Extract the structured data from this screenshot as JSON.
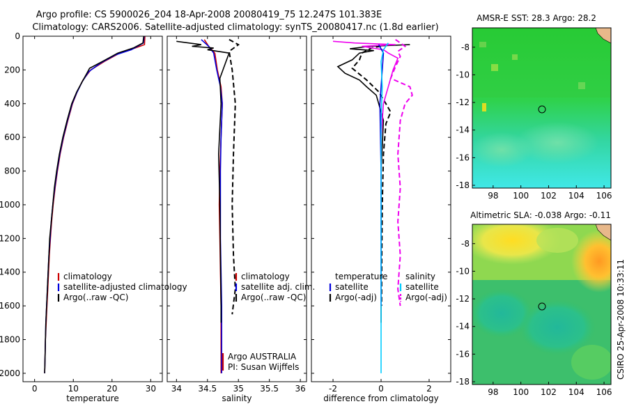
{
  "title_line1": "Argo profile: CS 5900026_204 18-Apr-2008 20080419_75 12.247S 101.383E",
  "title_line2": "Climatology: CARS2006. Satellite-adjusted climatology: synTS_20080417.nc (1.8d earlier)",
  "side_note": "CSIRO 25-Apr-2008 10:33:11",
  "chart_data": [
    {
      "type": "line",
      "id": "temperature",
      "xlabel": "temperature",
      "ylabel": "",
      "xlim": [
        -3,
        33
      ],
      "ylim": [
        0,
        2050
      ],
      "y_inverted": true,
      "xticks": [
        0,
        10,
        20,
        30
      ],
      "yticks": [
        0,
        200,
        400,
        600,
        800,
        1000,
        1200,
        1400,
        1600,
        1800,
        2000
      ],
      "legend": [
        "climatology",
        "satellite-adjusted climatology",
        "Argo(..raw -QC)"
      ],
      "series": [
        {
          "name": "climatology",
          "color": "#cc0000",
          "style": "solid",
          "points": [
            [
              28.5,
              0
            ],
            [
              28.4,
              50
            ],
            [
              26,
              70
            ],
            [
              22,
              100
            ],
            [
              18,
              150
            ],
            [
              14.5,
              200
            ],
            [
              12.5,
              260
            ],
            [
              11,
              330
            ],
            [
              9.8,
              400
            ],
            [
              8.6,
              500
            ],
            [
              7.5,
              600
            ],
            [
              6.6,
              700
            ],
            [
              5.9,
              800
            ],
            [
              5.3,
              900
            ],
            [
              4.8,
              1000
            ],
            [
              4.4,
              1100
            ],
            [
              4.1,
              1200
            ],
            [
              3.8,
              1300
            ],
            [
              3.6,
              1400
            ],
            [
              3.4,
              1500
            ],
            [
              3.2,
              1600
            ],
            [
              3.0,
              1700
            ],
            [
              2.8,
              1800
            ],
            [
              2.7,
              1900
            ],
            [
              2.6,
              2000
            ]
          ]
        },
        {
          "name": "satellite-adjusted climatology",
          "color": "#0000dd",
          "style": "solid",
          "points": [
            [
              28.3,
              0
            ],
            [
              28.1,
              40
            ],
            [
              25,
              80
            ],
            [
              21,
              110
            ],
            [
              17,
              160
            ],
            [
              14,
              210
            ],
            [
              12.3,
              270
            ],
            [
              10.8,
              340
            ],
            [
              9.7,
              400
            ],
            [
              8.5,
              500
            ],
            [
              7.4,
              600
            ],
            [
              6.5,
              700
            ],
            [
              5.8,
              800
            ],
            [
              5.2,
              900
            ],
            [
              4.7,
              1000
            ],
            [
              4.3,
              1100
            ],
            [
              4.0,
              1200
            ],
            [
              3.7,
              1300
            ],
            [
              3.5,
              1400
            ],
            [
              3.3,
              1500
            ],
            [
              3.1,
              1600
            ],
            [
              2.9,
              1700
            ],
            [
              2.8,
              1800
            ],
            [
              2.7,
              1900
            ],
            [
              2.6,
              2000
            ]
          ]
        },
        {
          "name": "Argo(..raw -QC)",
          "color": "#000000",
          "style": "solid",
          "points": [
            [
              28.2,
              0
            ],
            [
              28.0,
              40
            ],
            [
              25.5,
              70
            ],
            [
              21.5,
              100
            ],
            [
              17.5,
              150
            ],
            [
              14.2,
              190
            ],
            [
              13.5,
              220
            ],
            [
              12.3,
              270
            ],
            [
              10.9,
              330
            ],
            [
              9.6,
              400
            ],
            [
              8.4,
              500
            ],
            [
              7.3,
              600
            ],
            [
              6.4,
              700
            ],
            [
              5.7,
              800
            ],
            [
              5.1,
              900
            ],
            [
              4.7,
              1000
            ],
            [
              4.3,
              1100
            ],
            [
              3.9,
              1200
            ],
            [
              3.7,
              1300
            ],
            [
              3.5,
              1400
            ],
            [
              3.3,
              1500
            ],
            [
              3.1,
              1600
            ],
            [
              2.9,
              1700
            ],
            [
              2.8,
              1800
            ],
            [
              2.7,
              1900
            ],
            [
              2.6,
              2000
            ]
          ]
        }
      ]
    },
    {
      "type": "line",
      "id": "salinity",
      "xlabel": "salinity",
      "xlim": [
        33.85,
        36.1
      ],
      "ylim": [
        0,
        2050
      ],
      "y_inverted": true,
      "xticks": [
        34,
        34.5,
        35,
        35.5,
        36
      ],
      "legend": [
        "climatology",
        "satellite adj. clim.",
        "Argo(..raw -QC)"
      ],
      "annotation": [
        "Argo AUSTRALIA",
        "PI: Susan Wijffels"
      ],
      "series": [
        {
          "name": "climatology",
          "color": "#cc0000",
          "style": "solid",
          "points": [
            [
              34.45,
              20
            ],
            [
              34.52,
              60
            ],
            [
              34.62,
              100
            ],
            [
              34.66,
              200
            ],
            [
              34.72,
              300
            ],
            [
              34.74,
              400
            ],
            [
              34.72,
              600
            ],
            [
              34.7,
              800
            ],
            [
              34.69,
              1000
            ],
            [
              34.7,
              1200
            ],
            [
              34.71,
              1400
            ],
            [
              34.72,
              1600
            ],
            [
              34.72,
              1800
            ],
            [
              34.72,
              2000
            ]
          ]
        },
        {
          "name": "satellite adj. clim.",
          "color": "#0000dd",
          "style": "solid",
          "points": [
            [
              34.4,
              20
            ],
            [
              34.52,
              60
            ],
            [
              34.6,
              100
            ],
            [
              34.65,
              200
            ],
            [
              34.71,
              300
            ],
            [
              34.74,
              400
            ],
            [
              34.72,
              600
            ],
            [
              34.71,
              800
            ],
            [
              34.71,
              1000
            ],
            [
              34.71,
              1200
            ],
            [
              34.72,
              1400
            ],
            [
              34.73,
              1600
            ],
            [
              34.73,
              1800
            ],
            [
              34.73,
              2000
            ]
          ]
        },
        {
          "name": "Argo(..raw -QC)",
          "color": "#000000",
          "style": "solid",
          "points": [
            [
              34.0,
              30
            ],
            [
              34.4,
              50
            ],
            [
              34.25,
              60
            ],
            [
              34.6,
              70
            ],
            [
              34.5,
              80
            ],
            [
              34.85,
              100
            ],
            [
              34.8,
              150
            ],
            [
              34.7,
              250
            ],
            [
              34.72,
              400
            ],
            [
              34.68,
              700
            ],
            [
              34.7,
              1000
            ],
            [
              34.71,
              1300
            ],
            [
              34.72,
              1600
            ],
            [
              34.72,
              1700
            ]
          ]
        },
        {
          "name": "Argo adjusted",
          "color": "#000000",
          "style": "dashed",
          "points": [
            [
              34.85,
              20
            ],
            [
              35.0,
              50
            ],
            [
              34.85,
              90
            ],
            [
              34.9,
              200
            ],
            [
              34.95,
              400
            ],
            [
              34.92,
              700
            ],
            [
              34.9,
              1000
            ],
            [
              34.92,
              1300
            ],
            [
              34.95,
              1500
            ],
            [
              34.9,
              1650
            ]
          ]
        }
      ]
    },
    {
      "type": "line",
      "id": "difference",
      "xlabel": "difference from climatology",
      "xlim": [
        -2.9,
        2.9
      ],
      "ylim": [
        0,
        2050
      ],
      "y_inverted": true,
      "xticks": [
        -2,
        0,
        2
      ],
      "legend_left": [
        "temperature",
        "satellite",
        "Argo(-adj)"
      ],
      "legend_right": [
        "salinity",
        "satellite",
        "Argo(-adj)"
      ],
      "series": [
        {
          "name": "temperature Argo",
          "color": "#000000",
          "style": "solid",
          "points": [
            [
              1.2,
              50
            ],
            [
              -0.5,
              60
            ],
            [
              -1.3,
              75
            ],
            [
              -0.3,
              85
            ],
            [
              -0.9,
              100
            ],
            [
              -1.2,
              140
            ],
            [
              -1.8,
              180
            ],
            [
              -1.5,
              220
            ],
            [
              -0.9,
              260
            ],
            [
              -0.6,
              300
            ],
            [
              -0.2,
              350
            ],
            [
              -0.1,
              400
            ],
            [
              0.1,
              500
            ],
            [
              0,
              800
            ],
            [
              0,
              1200
            ],
            [
              0,
              1700
            ]
          ]
        },
        {
          "name": "temperature Argo adj",
          "color": "#000000",
          "style": "dashed",
          "points": [
            [
              0.3,
              50
            ],
            [
              -0.4,
              70
            ],
            [
              -0.8,
              100
            ],
            [
              -0.9,
              140
            ],
            [
              -1.2,
              190
            ],
            [
              -0.6,
              260
            ],
            [
              -0.1,
              330
            ],
            [
              0.2,
              400
            ],
            [
              0.4,
              450
            ],
            [
              0.2,
              520
            ],
            [
              0.1,
              700
            ],
            [
              0.05,
              1000
            ],
            [
              0.03,
              1300
            ],
            [
              0.02,
              1600
            ]
          ]
        },
        {
          "name": "salinity Argo",
          "color": "#ee00ee",
          "style": "solid",
          "points": [
            [
              -2.0,
              30
            ],
            [
              -1.1,
              40
            ],
            [
              0.6,
              50
            ],
            [
              -0.8,
              60
            ],
            [
              0.1,
              80
            ],
            [
              0.3,
              100
            ],
            [
              0.7,
              130
            ],
            [
              0.5,
              200
            ],
            [
              0.3,
              300
            ],
            [
              0.1,
              400
            ],
            [
              0,
              600
            ],
            [
              0,
              900
            ],
            [
              0,
              1200
            ],
            [
              0,
              1600
            ]
          ]
        },
        {
          "name": "salinity Argo adj",
          "color": "#ee00ee",
          "style": "dashed",
          "points": [
            [
              0.6,
              20
            ],
            [
              0.8,
              40
            ],
            [
              1.0,
              60
            ],
            [
              0.7,
              90
            ],
            [
              0.8,
              120
            ],
            [
              0.6,
              180
            ],
            [
              0.4,
              250
            ],
            [
              1.2,
              300
            ],
            [
              1.3,
              350
            ],
            [
              1.0,
              400
            ],
            [
              0.8,
              500
            ],
            [
              0.7,
              700
            ],
            [
              0.8,
              900
            ],
            [
              0.7,
              1100
            ],
            [
              0.8,
              1300
            ],
            [
              0.7,
              1500
            ],
            [
              0.8,
              1600
            ]
          ]
        },
        {
          "name": "temperature satellite",
          "color": "#0000dd",
          "style": "solid",
          "points": [
            [
              -0.1,
              50
            ],
            [
              0.1,
              100
            ],
            [
              0.05,
              200
            ],
            [
              -0.05,
              400
            ],
            [
              0,
              800
            ],
            [
              0,
              1200
            ],
            [
              0,
              1600
            ]
          ]
        },
        {
          "name": "salinity satellite",
          "color": "#00ccff",
          "style": "solid",
          "points": [
            [
              0.3,
              40
            ],
            [
              0.1,
              80
            ],
            [
              0,
              150
            ],
            [
              0.05,
              300
            ],
            [
              0,
              500
            ],
            [
              0,
              800
            ],
            [
              0,
              1200
            ],
            [
              0,
              1600
            ],
            [
              0,
              2000
            ]
          ]
        }
      ]
    },
    {
      "type": "heatmap",
      "id": "sst_map",
      "title": "AMSR-E SST: 28.3 Argo: 28.2",
      "xlim": [
        96.5,
        106.5
      ],
      "ylim": [
        -18.2,
        -6.6
      ],
      "xticks": [
        98,
        100,
        102,
        104,
        106
      ],
      "yticks": [
        -8,
        -10,
        -12,
        -14,
        -16,
        -18
      ],
      "marker": [
        101.383,
        -12.247
      ]
    },
    {
      "type": "heatmap",
      "id": "sla_map",
      "title": "Altimetric SLA: -0.038 Argo: -0.11",
      "xlim": [
        96.5,
        106.5
      ],
      "ylim": [
        -18.2,
        -6.6
      ],
      "xticks": [
        98,
        100,
        102,
        104,
        106
      ],
      "yticks": [
        -8,
        -10,
        -12,
        -14,
        -16,
        -18
      ],
      "marker": [
        101.383,
        -12.247
      ]
    }
  ]
}
